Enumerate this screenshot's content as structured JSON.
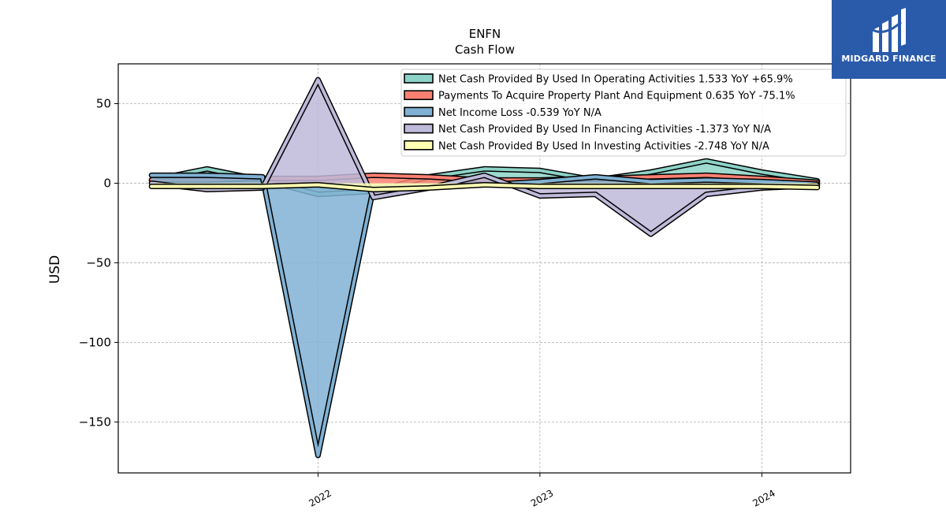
{
  "chart_data": {
    "type": "area",
    "title": "ENFN",
    "subtitle": "Cash Flow",
    "ylabel": "USD",
    "xlabel": "",
    "ylim": [
      -182,
      75
    ],
    "xlim": [
      2021.1,
      2024.4
    ],
    "yticks": [
      50,
      0,
      -50,
      -100,
      -150
    ],
    "ytick_labels": [
      "50",
      "0",
      "−50",
      "−100",
      "−150"
    ],
    "xticks": [
      2022,
      2023,
      2024
    ],
    "xtick_labels": [
      "2022",
      "2023",
      "2024"
    ],
    "grid": true,
    "legend_position": "top-right",
    "x": [
      2021.25,
      2021.5,
      2021.75,
      2022.0,
      2022.25,
      2022.5,
      2022.75,
      2023.0,
      2023.25,
      2023.5,
      2023.75,
      2024.0,
      2024.25
    ],
    "series": [
      {
        "name": "Net Cash Provided By Used In Operating Activities",
        "legend_label": "Net Cash Provided By Used In Operating Activities  1.533 YoY +65.9%",
        "color": "#8dd3c7",
        "values": [
          2,
          9,
          2,
          -7,
          -5,
          4,
          9,
          8,
          2,
          7,
          14,
          7,
          1.5
        ]
      },
      {
        "name": "Payments To Acquire Property Plant And Equipment",
        "legend_label": "Payments To Acquire Property Plant And Equipment  0.635 YoY -75.1%",
        "color": "#fb8072",
        "values": [
          2,
          2,
          3,
          3,
          5,
          4,
          2,
          2,
          3,
          4,
          5,
          3,
          0.6
        ]
      },
      {
        "name": "Net Income Loss",
        "legend_label": "Net Income Loss  -0.539 YoY N/A",
        "color": "#80b1d3",
        "values": [
          5,
          5,
          4,
          -171,
          -3,
          -2,
          -1,
          1,
          4,
          1,
          2,
          1,
          -0.5
        ]
      },
      {
        "name": "Net Cash Provided By Used In Financing Activities",
        "legend_label": "Net Cash Provided By Used In Financing Activities  -1.373 YoY N/A",
        "color": "#bebada",
        "values": [
          0,
          -4,
          -3,
          65,
          -9,
          -3,
          5,
          -8,
          -7,
          -32,
          -7,
          -3,
          -1.4
        ]
      },
      {
        "name": "Net Cash Provided By Used In Investing Activities",
        "legend_label": "Net Cash Provided By Used In Investing Activities  -2.748 YoY N/A",
        "color": "#ffffb3",
        "values": [
          -2,
          -2,
          -2,
          -1,
          -4,
          -3,
          -1,
          -2,
          -2,
          -2,
          -2,
          -2,
          -2.7
        ]
      }
    ]
  },
  "logo": {
    "text": "MIDGARD FINANCE"
  }
}
